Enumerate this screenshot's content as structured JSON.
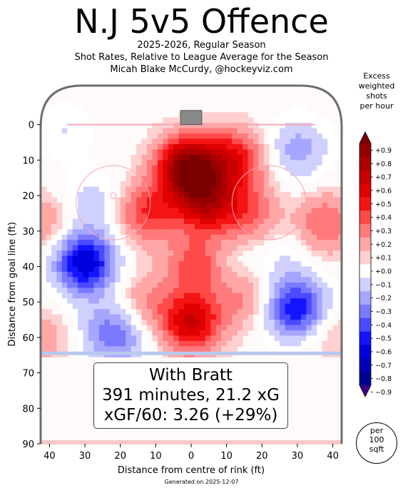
{
  "header": {
    "title": "N.J 5v5 Offence",
    "subtitle_1": "2025-2026, Regular Season",
    "subtitle_2": "Shot Rates, Relative to League Average for the Season",
    "subtitle_3": "Micah Blake McCurdy, @hockeyviz.com"
  },
  "annotation": {
    "line1": "With Bratt",
    "line2": "391 minutes, 21.2 xG",
    "line3": "xGF/60: 3.26 (+29%)"
  },
  "colorbar": {
    "title_lines": [
      "Excess",
      "weighted",
      "shots",
      "per hour"
    ],
    "tick_labels": [
      "+0.9",
      "+0.8",
      "+0.7",
      "+0.6",
      "+0.5",
      "+0.4",
      "+0.3",
      "+0.2",
      "+0.1",
      "+0.0",
      "−0.1",
      "−0.2",
      "−0.3",
      "−0.4",
      "−0.5",
      "−0.6",
      "−0.7",
      "−0.8",
      "−0.9"
    ],
    "colors": [
      "#7a0000",
      "#940000",
      "#ad0000",
      "#c60000",
      "#e00000",
      "#f51414",
      "#ff4a4a",
      "#ff7a7a",
      "#ffa6a6",
      "#ffd0d0",
      "#ffffff",
      "#d0d0ff",
      "#a6a6ff",
      "#7a7aff",
      "#4a4aff",
      "#1414ff",
      "#0000dd",
      "#0000b8",
      "#00008f",
      "#3d0080"
    ]
  },
  "unit_badge": {
    "lines": [
      "per",
      "100",
      "sqft"
    ]
  },
  "footer": "Generated on 2025-12-07",
  "chart_data": {
    "type": "heatmap",
    "xlabel": "Distance from centre of rink (ft)",
    "ylabel": "Distance from goal line (ft)",
    "xlim": [
      -42.5,
      42.5
    ],
    "ylim": [
      90,
      -11
    ],
    "x_ticks": [
      -40,
      -30,
      -20,
      -10,
      0,
      10,
      20,
      30,
      40
    ],
    "x_tick_labels": [
      "40",
      "30",
      "20",
      "10",
      "0",
      "10",
      "20",
      "30",
      "40"
    ],
    "y_ticks": [
      0,
      10,
      20,
      30,
      40,
      50,
      60,
      70,
      80,
      90
    ],
    "y_tick_labels": [
      "0",
      "10",
      "20",
      "30",
      "40",
      "50",
      "60",
      "70",
      "80",
      "90"
    ],
    "color_range": [
      -0.9,
      0.9
    ],
    "hotspots": [
      {
        "x": -1,
        "y": 12,
        "value": 0.9
      },
      {
        "x": 4,
        "y": 22,
        "value": 0.6
      },
      {
        "x": 2,
        "y": 40,
        "value": 0.4
      },
      {
        "x": 0,
        "y": 56,
        "value": 0.6
      },
      {
        "x": 12,
        "y": 10,
        "value": 0.5
      },
      {
        "x": -12,
        "y": 25,
        "value": 0.4
      },
      {
        "x": 16,
        "y": 25,
        "value": 0.3
      },
      {
        "x": 14,
        "y": 48,
        "value": 0.25
      },
      {
        "x": -13,
        "y": 50,
        "value": 0.2
      },
      {
        "x": 38,
        "y": 28,
        "value": 0.3
      },
      {
        "x": -42,
        "y": 28,
        "value": 0.2
      },
      {
        "x": 38,
        "y": 58,
        "value": 0.15
      },
      {
        "x": -42,
        "y": 60,
        "value": 0.15
      },
      {
        "x": 10,
        "y": 42,
        "value": -0.15
      },
      {
        "x": -30,
        "y": 39,
        "value": -0.7
      },
      {
        "x": 30,
        "y": 52,
        "value": -0.6
      },
      {
        "x": -23,
        "y": 58,
        "value": -0.3
      },
      {
        "x": 30,
        "y": 7,
        "value": -0.25
      },
      {
        "x": -28,
        "y": 22,
        "value": -0.15
      },
      {
        "x": -36,
        "y": 2,
        "value": -0.1
      },
      {
        "x": 26,
        "y": 38,
        "value": -0.1
      },
      {
        "x": -18,
        "y": 62,
        "value": -0.12
      }
    ]
  }
}
